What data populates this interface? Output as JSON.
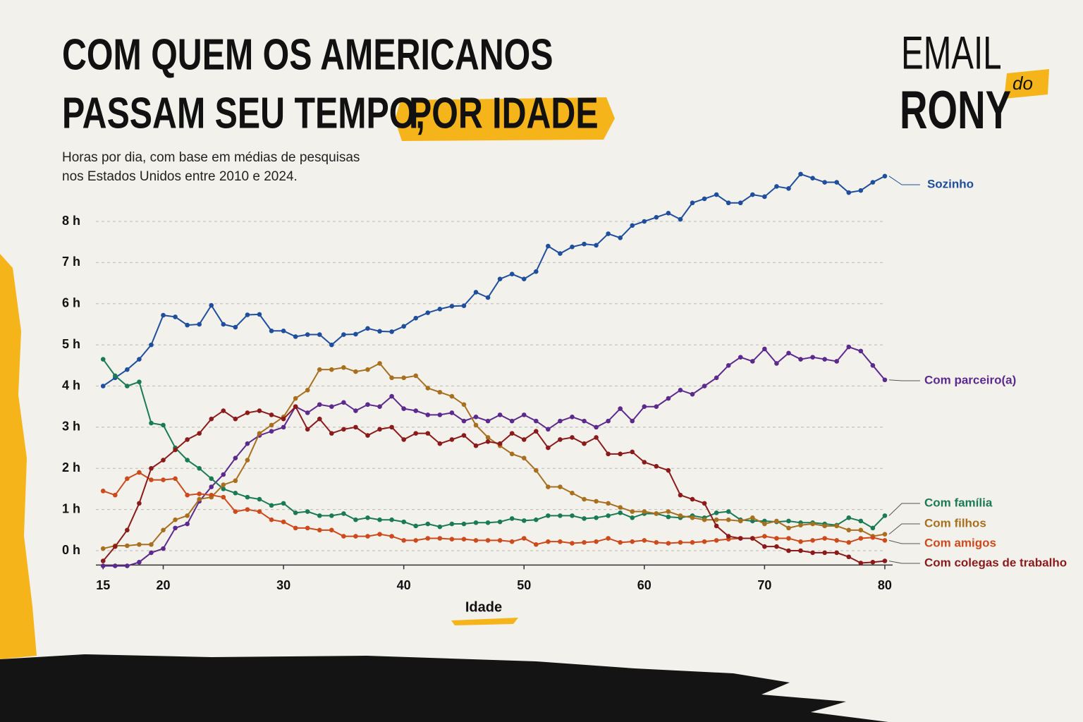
{
  "title": {
    "line1": "COM QUEM OS AMERICANOS",
    "line2": "PASSAM SEU TEMPO,",
    "highlight": "POR IDADE"
  },
  "subtitle": [
    "Horas por dia, com base em médias de pesquisas",
    "nos Estados Unidos entre 2010 e 2024."
  ],
  "brand": {
    "top": "EMAIL",
    "tag": "do",
    "bottom": "RONY"
  },
  "chart_data": {
    "type": "line",
    "x_label": "Idade",
    "x": [
      15,
      16,
      17,
      18,
      19,
      20,
      21,
      22,
      23,
      24,
      25,
      26,
      27,
      28,
      29,
      30,
      31,
      32,
      33,
      34,
      35,
      36,
      37,
      38,
      39,
      40,
      41,
      42,
      43,
      44,
      45,
      46,
      47,
      48,
      49,
      50,
      51,
      52,
      53,
      54,
      55,
      56,
      57,
      58,
      59,
      60,
      61,
      62,
      63,
      64,
      65,
      66,
      67,
      68,
      69,
      70,
      71,
      72,
      73,
      74,
      75,
      76,
      77,
      78,
      79,
      80
    ],
    "xlim": [
      14.4,
      81
    ],
    "xticks": [
      15,
      20,
      30,
      40,
      50,
      60,
      70,
      80
    ],
    "ylim": [
      -0.35,
      9.3
    ],
    "yticks": [
      {
        "value": 0,
        "label": "0 h"
      },
      {
        "value": 1,
        "label": "1 h"
      },
      {
        "value": 2,
        "label": "2 h"
      },
      {
        "value": 3,
        "label": "3 h"
      },
      {
        "value": 4,
        "label": "4 h"
      },
      {
        "value": 5,
        "label": "5 h"
      },
      {
        "value": 6,
        "label": "6 h"
      },
      {
        "value": 7,
        "label": "7 h"
      },
      {
        "value": 8,
        "label": "8 h"
      }
    ],
    "grid": true,
    "series": [
      {
        "name": "Sozinho",
        "color": "#1f4e9c",
        "values": [
          4.0,
          4.2,
          4.4,
          4.65,
          5.0,
          5.72,
          5.68,
          5.48,
          5.5,
          5.96,
          5.5,
          5.43,
          5.73,
          5.74,
          5.34,
          5.34,
          5.2,
          5.25,
          5.25,
          5.0,
          5.25,
          5.26,
          5.4,
          5.33,
          5.32,
          5.45,
          5.65,
          5.78,
          5.87,
          5.94,
          5.95,
          6.28,
          6.15,
          6.6,
          6.72,
          6.6,
          6.78,
          7.4,
          7.22,
          7.38,
          7.45,
          7.42,
          7.7,
          7.6,
          7.9,
          8.0,
          8.1,
          8.2,
          8.05,
          8.45,
          8.55,
          8.65,
          8.45,
          8.45,
          8.65,
          8.6,
          8.85,
          8.8,
          9.15,
          9.05,
          8.95,
          8.95,
          8.7,
          8.75,
          8.95,
          9.1
        ]
      },
      {
        "name": "Com parceiro(a)",
        "color": "#5b2a8c",
        "values": [
          -0.37,
          -0.37,
          -0.37,
          -0.28,
          -0.05,
          0.05,
          0.55,
          0.65,
          1.2,
          1.55,
          1.85,
          2.25,
          2.6,
          2.8,
          2.9,
          3.0,
          3.5,
          3.35,
          3.55,
          3.5,
          3.6,
          3.4,
          3.55,
          3.5,
          3.75,
          3.45,
          3.4,
          3.3,
          3.3,
          3.35,
          3.15,
          3.25,
          3.15,
          3.3,
          3.15,
          3.3,
          3.15,
          2.95,
          3.15,
          3.25,
          3.15,
          3.0,
          3.15,
          3.45,
          3.15,
          3.5,
          3.5,
          3.7,
          3.9,
          3.8,
          4.0,
          4.2,
          4.5,
          4.7,
          4.6,
          4.9,
          4.55,
          4.8,
          4.65,
          4.7,
          4.65,
          4.6,
          4.95,
          4.85,
          4.5,
          4.15
        ]
      },
      {
        "name": "Com família",
        "color": "#1a7a55",
        "values": [
          4.65,
          4.25,
          4.0,
          4.1,
          3.1,
          3.05,
          2.5,
          2.2,
          2.0,
          1.75,
          1.5,
          1.4,
          1.3,
          1.25,
          1.1,
          1.15,
          0.92,
          0.95,
          0.85,
          0.85,
          0.9,
          0.75,
          0.8,
          0.75,
          0.75,
          0.7,
          0.6,
          0.65,
          0.58,
          0.65,
          0.65,
          0.68,
          0.68,
          0.7,
          0.78,
          0.73,
          0.75,
          0.85,
          0.85,
          0.85,
          0.78,
          0.8,
          0.85,
          0.92,
          0.8,
          0.9,
          0.9,
          0.82,
          0.8,
          0.85,
          0.8,
          0.92,
          0.95,
          0.75,
          0.72,
          0.72,
          0.7,
          0.72,
          0.68,
          0.68,
          0.65,
          0.62,
          0.8,
          0.72,
          0.55,
          0.85
        ]
      },
      {
        "name": "Com filhos",
        "color": "#a8701e",
        "values": [
          0.05,
          0.12,
          0.12,
          0.15,
          0.15,
          0.5,
          0.75,
          0.85,
          1.25,
          1.3,
          1.6,
          1.7,
          2.2,
          2.85,
          3.05,
          3.25,
          3.7,
          3.9,
          4.4,
          4.4,
          4.45,
          4.35,
          4.4,
          4.55,
          4.2,
          4.2,
          4.25,
          3.95,
          3.85,
          3.75,
          3.55,
          3.05,
          2.75,
          2.55,
          2.35,
          2.25,
          1.95,
          1.55,
          1.55,
          1.4,
          1.25,
          1.2,
          1.15,
          1.05,
          0.95,
          0.95,
          0.9,
          0.95,
          0.85,
          0.8,
          0.75,
          0.75,
          0.75,
          0.72,
          0.8,
          0.65,
          0.72,
          0.55,
          0.62,
          0.65,
          0.6,
          0.6,
          0.5,
          0.5,
          0.35,
          0.4
        ]
      },
      {
        "name": "Com amigos",
        "color": "#cc4a1c",
        "values": [
          1.45,
          1.35,
          1.75,
          1.9,
          1.72,
          1.72,
          1.75,
          1.35,
          1.38,
          1.35,
          1.3,
          0.95,
          1.0,
          0.95,
          0.75,
          0.7,
          0.55,
          0.55,
          0.5,
          0.5,
          0.35,
          0.35,
          0.35,
          0.4,
          0.35,
          0.25,
          0.25,
          0.3,
          0.3,
          0.28,
          0.28,
          0.25,
          0.25,
          0.25,
          0.22,
          0.3,
          0.15,
          0.22,
          0.22,
          0.18,
          0.2,
          0.22,
          0.3,
          0.2,
          0.22,
          0.25,
          0.2,
          0.18,
          0.2,
          0.2,
          0.22,
          0.25,
          0.28,
          0.3,
          0.3,
          0.35,
          0.3,
          0.3,
          0.22,
          0.25,
          0.3,
          0.25,
          0.2,
          0.3,
          0.32,
          0.25
        ]
      },
      {
        "name": "Com colegas de trabalho",
        "color": "#8b1a1a",
        "values": [
          -0.25,
          0.1,
          0.5,
          1.15,
          2.0,
          2.2,
          2.45,
          2.7,
          2.85,
          3.2,
          3.4,
          3.2,
          3.35,
          3.4,
          3.3,
          3.2,
          3.5,
          2.95,
          3.2,
          2.85,
          2.95,
          3.0,
          2.8,
          2.95,
          3.0,
          2.7,
          2.85,
          2.85,
          2.6,
          2.7,
          2.8,
          2.55,
          2.65,
          2.6,
          2.85,
          2.7,
          2.9,
          2.5,
          2.7,
          2.75,
          2.6,
          2.75,
          2.35,
          2.35,
          2.4,
          2.15,
          2.05,
          1.95,
          1.35,
          1.25,
          1.15,
          0.6,
          0.35,
          0.3,
          0.3,
          0.1,
          0.1,
          0.0,
          0.0,
          -0.05,
          -0.05,
          -0.05,
          -0.15,
          -0.3,
          -0.28,
          -0.25
        ]
      }
    ]
  }
}
